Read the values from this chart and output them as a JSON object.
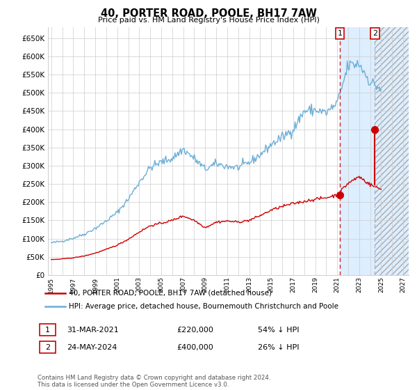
{
  "title": "40, PORTER ROAD, POOLE, BH17 7AW",
  "subtitle": "Price paid vs. HM Land Registry's House Price Index (HPI)",
  "ylabel_ticks": [
    0,
    50000,
    100000,
    150000,
    200000,
    250000,
    300000,
    350000,
    400000,
    450000,
    500000,
    550000,
    600000,
    650000
  ],
  "ylim": [
    0,
    680000
  ],
  "xlim_start": 1994.7,
  "xlim_end": 2027.5,
  "shade_start": 2021.25,
  "shade_end": 2024.42,
  "hatch_start": 2024.42,
  "transaction1": {
    "year": 2021.25,
    "price": 220000,
    "label": "1"
  },
  "transaction2": {
    "year": 2024.42,
    "price": 400000,
    "label": "2"
  },
  "legend_red": "40, PORTER ROAD, POOLE, BH17 7AW (detached house)",
  "legend_blue": "HPI: Average price, detached house, Bournemouth Christchurch and Poole",
  "footer": "Contains HM Land Registry data © Crown copyright and database right 2024.\nThis data is licensed under the Open Government Licence v3.0.",
  "hpi_color": "#6baed6",
  "price_color": "#cc0000",
  "shade_color": "#ddeeff",
  "hatch_color": "#ddeeff",
  "grid_color": "#cccccc",
  "bg_color": "#ffffff",
  "ann1_date": "31-MAR-2021",
  "ann1_price": "£220,000",
  "ann1_pct": "54% ↓ HPI",
  "ann2_date": "24-MAY-2024",
  "ann2_price": "£400,000",
  "ann2_pct": "26% ↓ HPI"
}
